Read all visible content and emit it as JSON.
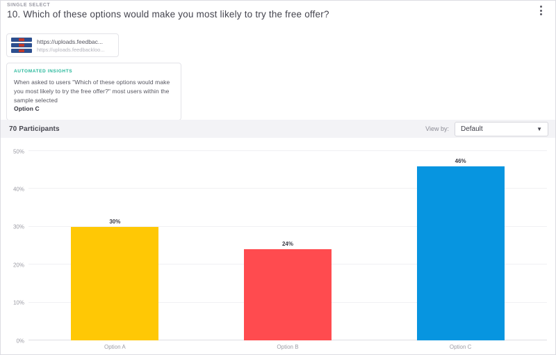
{
  "header": {
    "type_label": "SINGLE SELECT",
    "title": "10. Which of these options would make you most likely to try the free offer?"
  },
  "stimulus": {
    "url_primary": "https://uploads.feedbac...",
    "url_secondary": "https://uploads.feedbackloo..."
  },
  "insights": {
    "label": "AUTOMATED INSIGHTS",
    "text": "When asked to users \"Which of these options would make you most likely to try the free offer?\" most users within the sample selected",
    "highlight": "Option C"
  },
  "participants_bar": {
    "count_label": "70 Participants",
    "view_by_label": "View by:",
    "view_by_value": "Default",
    "caret": "▼"
  },
  "chart_data": {
    "type": "bar",
    "title": "",
    "xlabel": "",
    "ylabel": "",
    "categories": [
      "Option A",
      "Option B",
      "Option C"
    ],
    "values": [
      30,
      24,
      46
    ],
    "value_labels": [
      "30%",
      "24%",
      "46%"
    ],
    "bar_colors": [
      "#FFC805",
      "#FF4B4F",
      "#0795E0"
    ],
    "yticks": [
      0,
      10,
      20,
      30,
      40,
      50
    ],
    "ytick_labels": [
      "0%",
      "10%",
      "20%",
      "30%",
      "40%",
      "50%"
    ],
    "ylim": [
      0,
      50
    ],
    "grid": true,
    "legend": false
  },
  "colors": {
    "accent_green": "#25b79a",
    "participants_bg": "#f3f3f6",
    "border": "#e3e3e8"
  }
}
